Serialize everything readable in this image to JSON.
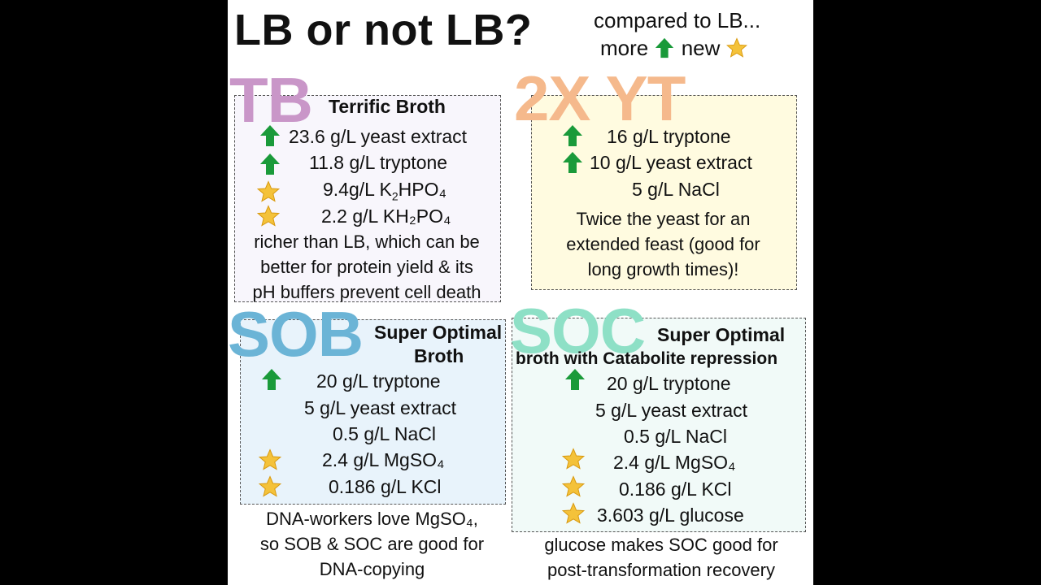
{
  "page": {
    "title": "LB or not LB?",
    "legend": {
      "line1": "compared to LB...",
      "more": "more",
      "new": "new",
      "more_icon": "green-up-arrow-icon",
      "new_icon": "gold-star-icon"
    }
  },
  "colors": {
    "tb": "#c996c8",
    "yt": "#f5b98c",
    "sob": "#6bb4d6",
    "soc": "#8ee0c6",
    "arrow": "#1a9a3a",
    "star": "#f4c23a"
  },
  "tb": {
    "big_label": "TB",
    "full_name": "Terrific Broth",
    "items": [
      {
        "icon": "arrow",
        "text": "23.6 g/L yeast extract"
      },
      {
        "icon": "arrow",
        "text": "11.8 g/L tryptone"
      },
      {
        "icon": "star",
        "text_pre": "9.4g/L K",
        "text_sub": "2",
        "text_post": "HPO₄"
      },
      {
        "icon": "star",
        "text": "2.2 g/L KH₂PO₄"
      }
    ],
    "desc": [
      "richer than LB, which can be",
      "better for protein yield & its",
      "pH buffers prevent cell death"
    ]
  },
  "yt": {
    "big_label": "2X YT",
    "items": [
      {
        "icon": "arrow",
        "text": "16 g/L tryptone"
      },
      {
        "icon": "arrow",
        "text": "10 g/L yeast extract"
      },
      {
        "icon": "none",
        "text": "5 g/L NaCl"
      }
    ],
    "desc": [
      "Twice the yeast for an",
      "extended feast (good for",
      "long growth times)!"
    ]
  },
  "sob": {
    "big_label": "SOB",
    "name_line1": "Super Optimal",
    "name_line2": "Broth",
    "items": [
      {
        "icon": "arrow",
        "text": "20 g/L tryptone"
      },
      {
        "icon": "none",
        "text": "5 g/L yeast extract"
      },
      {
        "icon": "none",
        "text": "0.5 g/L NaCl"
      },
      {
        "icon": "star",
        "text": "2.4 g/L MgSO₄"
      },
      {
        "icon": "star",
        "text": "0.186 g/L KCl"
      }
    ],
    "note": [
      "DNA-workers love MgSO₄,",
      "so SOB & SOC are good for",
      "DNA-copying"
    ]
  },
  "soc": {
    "big_label": "SOC",
    "name_line1": "Super Optimal",
    "name_line2": "broth with Catabolite repression",
    "items": [
      {
        "icon": "arrow",
        "text": "20 g/L tryptone"
      },
      {
        "icon": "none",
        "text": "5 g/L yeast extract"
      },
      {
        "icon": "none",
        "text": "0.5 g/L NaCl"
      },
      {
        "icon": "star",
        "text": "2.4 g/L MgSO₄"
      },
      {
        "icon": "star",
        "text": "0.186 g/L KCl"
      },
      {
        "icon": "star",
        "text": "3.603 g/L glucose"
      }
    ],
    "note": [
      "glucose makes SOC good for",
      "post-transformation recovery"
    ]
  }
}
